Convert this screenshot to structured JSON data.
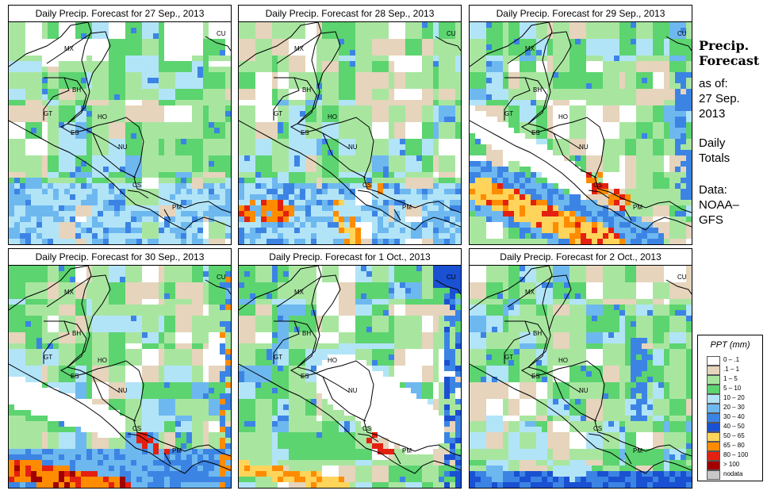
{
  "panels": [
    {
      "title": "Daily Precip. Forecast for  27 Sep., 2013",
      "seed": 11,
      "scenario": "d1"
    },
    {
      "title": "Daily Precip. Forecast for  28 Sep., 2013",
      "seed": 23,
      "scenario": "d2"
    },
    {
      "title": "Daily Precip. Forecast for  29 Sep., 2013",
      "seed": 37,
      "scenario": "d3"
    },
    {
      "title": "Daily Precip. Forecast for  30 Sep., 2013",
      "seed": 41,
      "scenario": "d4"
    },
    {
      "title": "Daily Precip. Forecast for   1 Oct., 2013",
      "seed": 53,
      "scenario": "d5"
    },
    {
      "title": "Daily Precip. Forecast for   2 Oct., 2013",
      "seed": 67,
      "scenario": "d6"
    }
  ],
  "country_labels": {
    "mx": "MX",
    "cu": "CU",
    "bh": "BH",
    "gt": "GT",
    "ho": "HO",
    "es": "ES",
    "nu": "NU",
    "cs": "CS",
    "pm": "PM"
  },
  "sidebar": {
    "title_line1": "Precip.",
    "title_line2": "Forecast",
    "asof_label": "as of:",
    "asof_date_line1": "27 Sep.",
    "asof_date_line2": "2013",
    "daily_line1": "Daily",
    "daily_line2": "Totals",
    "data_line1": "Data:",
    "data_line2": "NOAA–",
    "data_line3": "GFS"
  },
  "legend": {
    "title": "PPT (mm)",
    "items": [
      {
        "label": "0 – .1",
        "color": "#ffffff"
      },
      {
        "label": ".1 – 1",
        "color": "#e6d4bc"
      },
      {
        "label": "1 – 5",
        "color": "#a8e6a0"
      },
      {
        "label": "5 – 10",
        "color": "#5cd470"
      },
      {
        "label": "10 – 20",
        "color": "#b2e4f8"
      },
      {
        "label": "20 – 30",
        "color": "#6eb8f0"
      },
      {
        "label": "30 – 40",
        "color": "#3c84e4"
      },
      {
        "label": "40 – 50",
        "color": "#1a50d2"
      },
      {
        "label": "50 – 65",
        "color": "#ffd45a"
      },
      {
        "label": "65 – 80",
        "color": "#ff8c00"
      },
      {
        "label": "80 – 100",
        "color": "#e42010"
      },
      {
        "label": "> 100",
        "color": "#a00000"
      },
      {
        "label": "nodata",
        "color": "#c8c8c8"
      }
    ]
  }
}
